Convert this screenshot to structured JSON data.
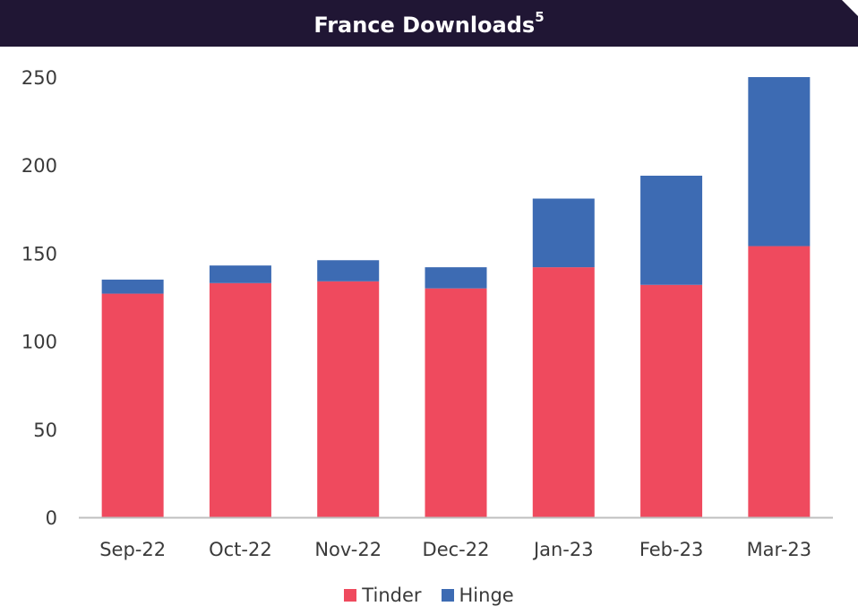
{
  "title": {
    "text": "France Downloads",
    "superscript": "5"
  },
  "colors": {
    "title_bar": "#201634",
    "tinder": "#EF4A5E",
    "hinge": "#3D6BB3",
    "axis": "#bfbfbf"
  },
  "chart_data": {
    "type": "bar",
    "stacked": true,
    "title": "France Downloads",
    "categories": [
      "Sep-22",
      "Oct-22",
      "Nov-22",
      "Dec-22",
      "Jan-23",
      "Feb-23",
      "Mar-23"
    ],
    "series": [
      {
        "name": "Tinder",
        "values": [
          127,
          133,
          134,
          130,
          142,
          132,
          154
        ]
      },
      {
        "name": "Hinge",
        "values": [
          8,
          10,
          12,
          12,
          39,
          62,
          96
        ]
      }
    ],
    "ylim": [
      0,
      250
    ],
    "yticks": [
      "0",
      "50",
      "100",
      "150",
      "200",
      "250"
    ],
    "xlabel": "",
    "ylabel": "",
    "grid": false,
    "legend_position": "bottom"
  }
}
